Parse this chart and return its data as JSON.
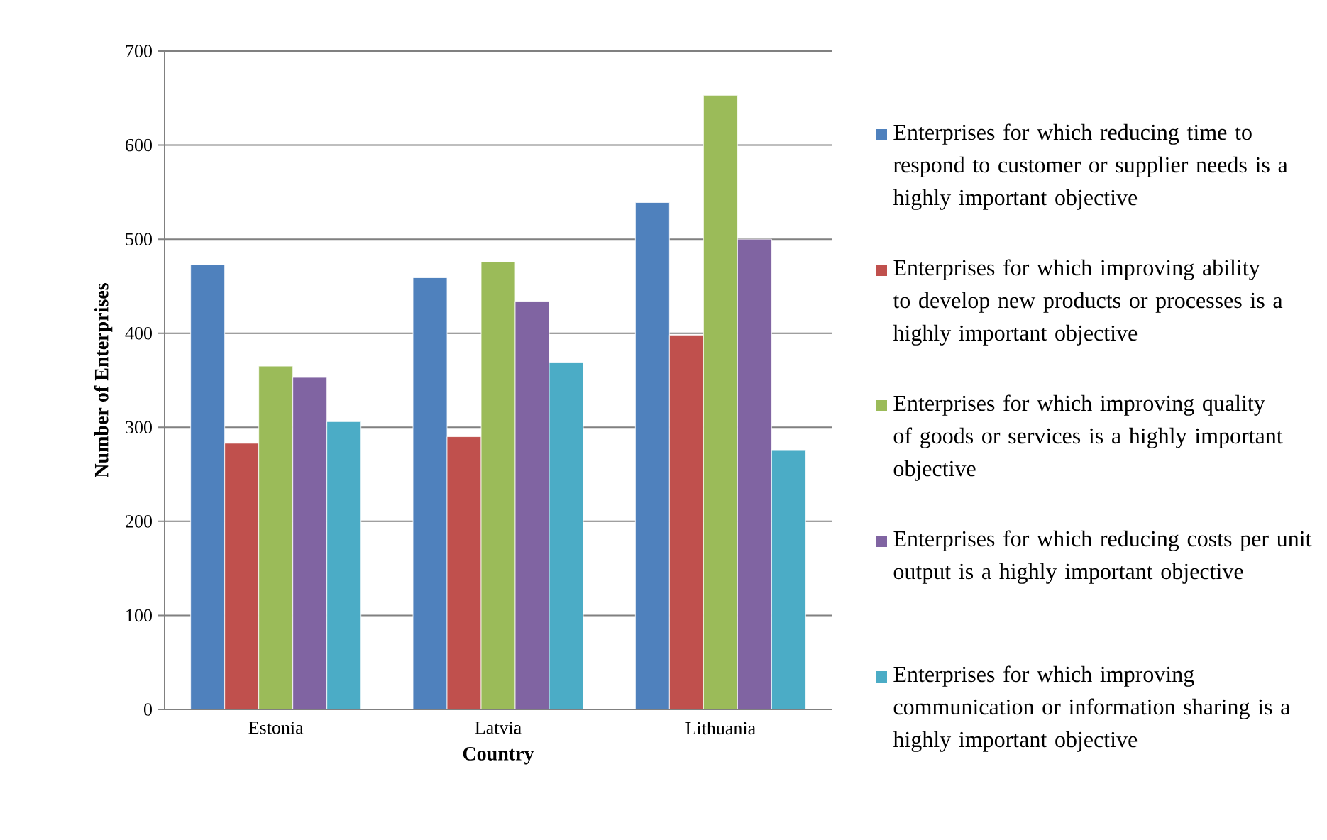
{
  "chart_data": {
    "type": "bar",
    "xlabel": "Country",
    "ylabel": "Number of Enterprises",
    "categories": [
      "Estonia",
      "Latvia",
      "Lithuania"
    ],
    "series": [
      {
        "name": "Enterprises for which reducing time to respond to customer or supplier needs is a highly important objective",
        "color": "#4f81bd",
        "values": [
          473,
          459,
          539
        ]
      },
      {
        "name": "Enterprises for which improving ability to develop new products or processes is a highly important objective",
        "color": "#c0504d",
        "values": [
          283,
          290,
          398
        ]
      },
      {
        "name": "Enterprises for which improving quality of goods or services is a highly important objective",
        "color": "#9bbb59",
        "values": [
          365,
          476,
          653
        ]
      },
      {
        "name": "Enterprises for which reducing costs per unit output is a highly important objective",
        "color": "#8064a2",
        "values": [
          353,
          434,
          500
        ]
      },
      {
        "name": "Enterprises for which improving communication or information sharing is a highly important objective",
        "color": "#4bacc6",
        "values": [
          306,
          369,
          276
        ]
      }
    ],
    "ylim": [
      0,
      700
    ],
    "yticks": [
      0,
      100,
      200,
      300,
      400,
      500,
      600,
      700
    ],
    "grid": "y",
    "legend": "right"
  }
}
